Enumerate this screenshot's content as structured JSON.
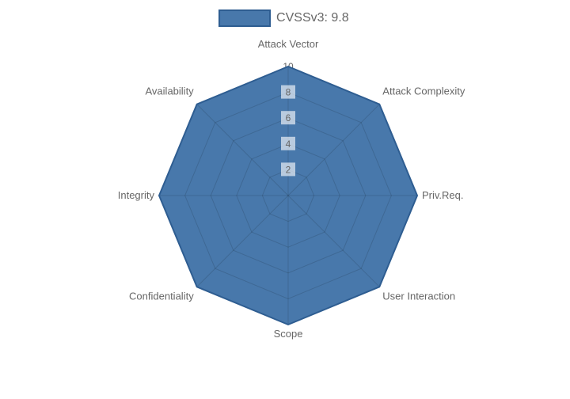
{
  "legend": {
    "label": "CVSSv3: 9.8"
  },
  "colors": {
    "fill": "#4878ab",
    "border": "#2e5d91",
    "grid": "rgba(0,0,0,0.13)",
    "label_text": "#666666",
    "tick_text": "#666666",
    "tick_backdrop": "rgba(255,255,255,0.62)",
    "tick_backdrop_outer": "#ffffff",
    "background": "#ffffff"
  },
  "chart_data": {
    "type": "radar",
    "title": "",
    "categories": [
      "Attack Vector",
      "Attack Complexity",
      "Priv.Req.",
      "User Interaction",
      "Scope",
      "Confidentiality",
      "Integrity",
      "Availability"
    ],
    "series": [
      {
        "name": "CVSSv3: 9.8",
        "values": [
          10,
          10,
          10,
          10,
          10,
          10,
          10,
          10
        ]
      }
    ],
    "scale": {
      "min": 0,
      "max": 10,
      "ticks": [
        2,
        4,
        6,
        8,
        10
      ]
    },
    "legend_position": "top",
    "grid": true
  }
}
